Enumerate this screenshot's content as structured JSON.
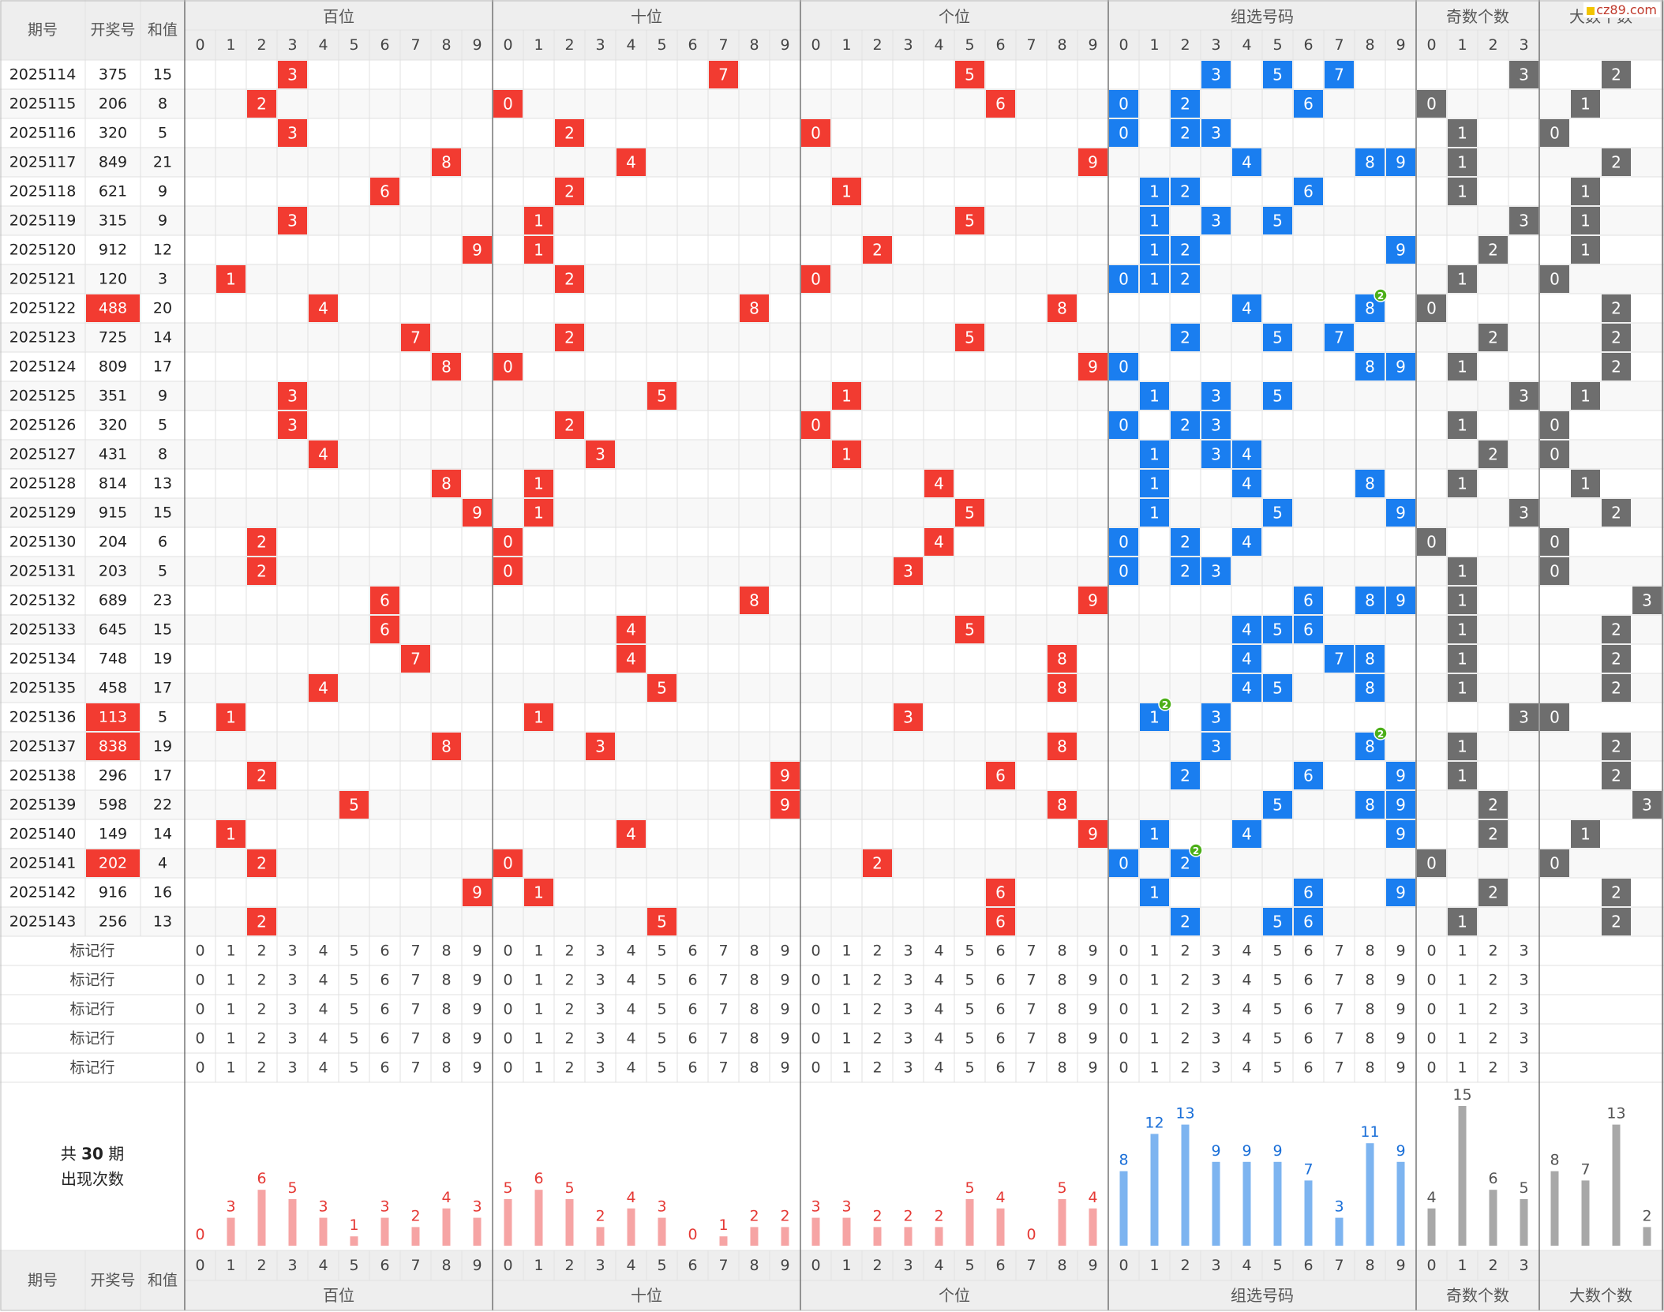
{
  "watermark": "cz89.com",
  "header": {
    "issue": "期号",
    "number": "开奖号",
    "sum": "和值",
    "groups": [
      "百位",
      "十位",
      "个位",
      "组选号码",
      "奇数个数",
      "大数个数"
    ],
    "digits10": [
      "0",
      "1",
      "2",
      "3",
      "4",
      "5",
      "6",
      "7",
      "8",
      "9"
    ],
    "digits4": [
      "0",
      "1",
      "2",
      "3"
    ]
  },
  "marker_label": "标记行",
  "stats_label_pre": "共",
  "stats_label_num": "30",
  "stats_label_post": "期",
  "stats_label_line2": "出现次数",
  "colors": {
    "position": "#f23b31",
    "group": "#1a7ef0",
    "count": "#6e6e6e",
    "repeat": "#4caf18",
    "grid": "#e1e1e1",
    "header_bg": "#eeeeee"
  },
  "chart_data": {
    "type": "table",
    "rows": [
      {
        "issue": "2025114",
        "num": "375",
        "sum": "15",
        "odd": 3,
        "big": 2,
        "highlight": false
      },
      {
        "issue": "2025115",
        "num": "206",
        "sum": "8",
        "odd": 0,
        "big": 1,
        "highlight": false
      },
      {
        "issue": "2025116",
        "num": "320",
        "sum": "5",
        "odd": 1,
        "big": 0,
        "highlight": false
      },
      {
        "issue": "2025117",
        "num": "849",
        "sum": "21",
        "odd": 1,
        "big": 2,
        "highlight": false
      },
      {
        "issue": "2025118",
        "num": "621",
        "sum": "9",
        "odd": 1,
        "big": 1,
        "highlight": false
      },
      {
        "issue": "2025119",
        "num": "315",
        "sum": "9",
        "odd": 3,
        "big": 1,
        "highlight": false
      },
      {
        "issue": "2025120",
        "num": "912",
        "sum": "12",
        "odd": 2,
        "big": 1,
        "highlight": false
      },
      {
        "issue": "2025121",
        "num": "120",
        "sum": "3",
        "odd": 1,
        "big": 0,
        "highlight": false
      },
      {
        "issue": "2025122",
        "num": "488",
        "sum": "20",
        "odd": 0,
        "big": 2,
        "highlight": true
      },
      {
        "issue": "2025123",
        "num": "725",
        "sum": "14",
        "odd": 2,
        "big": 2,
        "highlight": false
      },
      {
        "issue": "2025124",
        "num": "809",
        "sum": "17",
        "odd": 1,
        "big": 2,
        "highlight": false
      },
      {
        "issue": "2025125",
        "num": "351",
        "sum": "9",
        "odd": 3,
        "big": 1,
        "highlight": false
      },
      {
        "issue": "2025126",
        "num": "320",
        "sum": "5",
        "odd": 1,
        "big": 0,
        "highlight": false
      },
      {
        "issue": "2025127",
        "num": "431",
        "sum": "8",
        "odd": 2,
        "big": 0,
        "highlight": false
      },
      {
        "issue": "2025128",
        "num": "814",
        "sum": "13",
        "odd": 1,
        "big": 1,
        "highlight": false
      },
      {
        "issue": "2025129",
        "num": "915",
        "sum": "15",
        "odd": 3,
        "big": 2,
        "highlight": false
      },
      {
        "issue": "2025130",
        "num": "204",
        "sum": "6",
        "odd": 0,
        "big": 0,
        "highlight": false
      },
      {
        "issue": "2025131",
        "num": "203",
        "sum": "5",
        "odd": 1,
        "big": 0,
        "highlight": false
      },
      {
        "issue": "2025132",
        "num": "689",
        "sum": "23",
        "odd": 1,
        "big": 3,
        "highlight": false
      },
      {
        "issue": "2025133",
        "num": "645",
        "sum": "15",
        "odd": 1,
        "big": 2,
        "highlight": false
      },
      {
        "issue": "2025134",
        "num": "748",
        "sum": "19",
        "odd": 1,
        "big": 2,
        "highlight": false
      },
      {
        "issue": "2025135",
        "num": "458",
        "sum": "17",
        "odd": 1,
        "big": 2,
        "highlight": false
      },
      {
        "issue": "2025136",
        "num": "113",
        "sum": "5",
        "odd": 3,
        "big": 0,
        "highlight": true
      },
      {
        "issue": "2025137",
        "num": "838",
        "sum": "19",
        "odd": 1,
        "big": 2,
        "highlight": true
      },
      {
        "issue": "2025138",
        "num": "296",
        "sum": "17",
        "odd": 1,
        "big": 2,
        "highlight": false
      },
      {
        "issue": "2025139",
        "num": "598",
        "sum": "22",
        "odd": 2,
        "big": 3,
        "highlight": false
      },
      {
        "issue": "2025140",
        "num": "149",
        "sum": "14",
        "odd": 2,
        "big": 1,
        "highlight": false
      },
      {
        "issue": "2025141",
        "num": "202",
        "sum": "4",
        "odd": 0,
        "big": 0,
        "highlight": true
      },
      {
        "issue": "2025142",
        "num": "916",
        "sum": "16",
        "odd": 2,
        "big": 2,
        "highlight": false
      },
      {
        "issue": "2025143",
        "num": "256",
        "sum": "13",
        "odd": 1,
        "big": 2,
        "highlight": false
      }
    ],
    "counts": {
      "hundreds": [
        "0",
        "3",
        "6",
        "5",
        "3",
        "1",
        "3",
        "2",
        "4",
        "3"
      ],
      "tens": [
        "5",
        "6",
        "5",
        "2",
        "4",
        "3",
        "0",
        "1",
        "2",
        "2"
      ],
      "units": [
        "3",
        "3",
        "2",
        "2",
        "2",
        "5",
        "4",
        "0",
        "5",
        "4"
      ],
      "group": [
        "8",
        "12",
        "13",
        "9",
        "9",
        "9",
        "7",
        "3",
        "11",
        "9"
      ],
      "odd": [
        "4",
        "15",
        "6",
        "5"
      ],
      "big": [
        "8",
        "7",
        "13",
        "2"
      ]
    }
  }
}
